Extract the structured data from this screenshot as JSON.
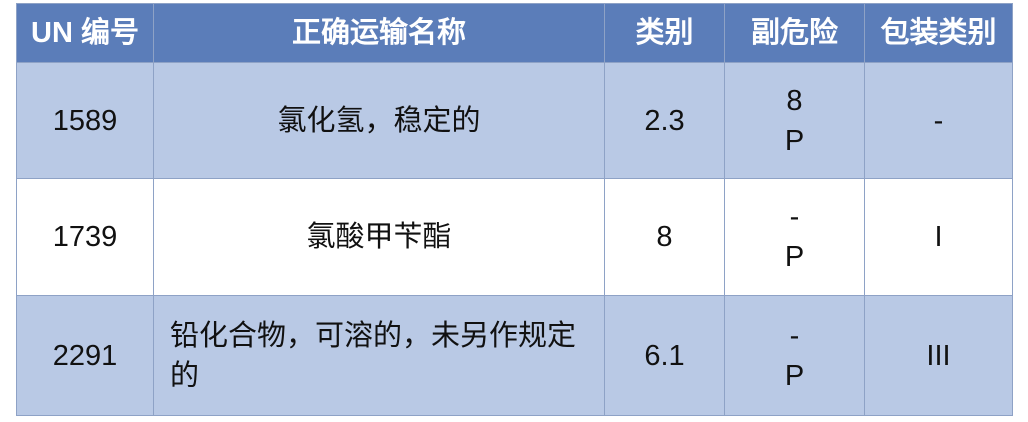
{
  "headers": [
    "UN 编号",
    "正确运输名称",
    "类别",
    "副危险",
    "包装类别"
  ],
  "rows": [
    {
      "un": "1589",
      "name": "氯化氢，稳定的",
      "class": "2.3",
      "sub_risk": [
        "8",
        "P"
      ],
      "packing_group": "-"
    },
    {
      "un": "1739",
      "name": "氯酸甲苄酯",
      "class": "8",
      "sub_risk": [
        "-",
        "P"
      ],
      "packing_group": "I"
    },
    {
      "un": "2291",
      "name": "铅化合物，可溶的，未另作规定的",
      "class": "6.1",
      "sub_risk": [
        "-",
        "P"
      ],
      "packing_group": "III"
    }
  ],
  "colors": {
    "header": "#5b7db9",
    "row_alt": "#b9c9e5",
    "border": "#8ea2c6"
  }
}
